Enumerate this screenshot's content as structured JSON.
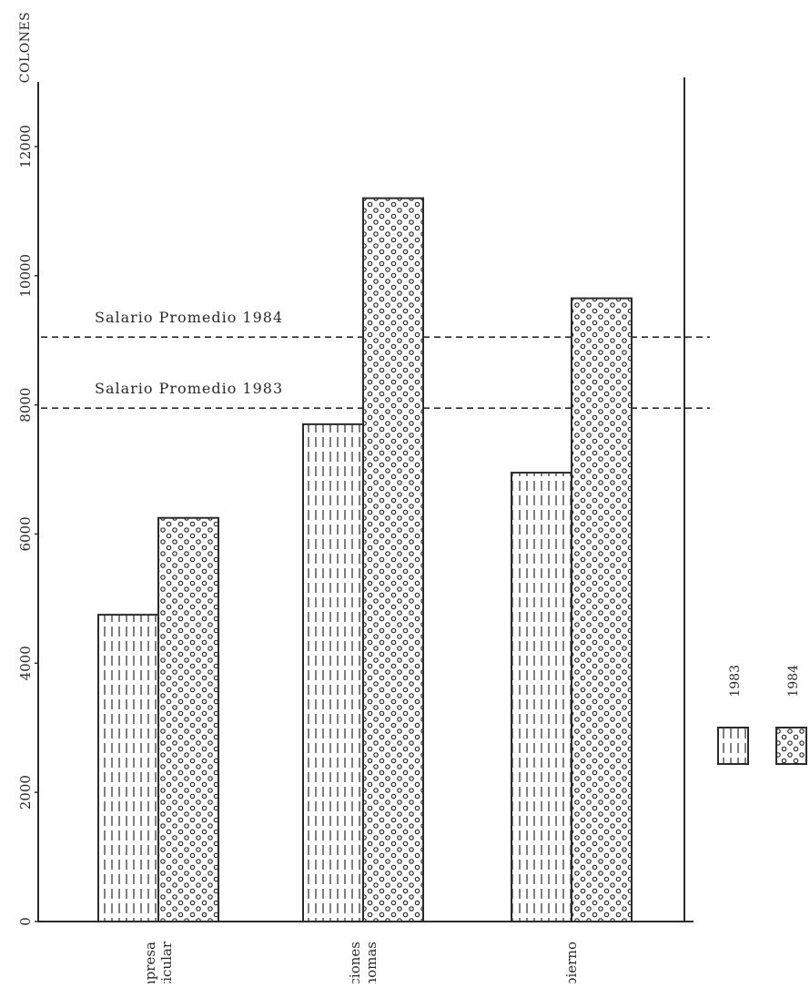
{
  "chart_data": {
    "type": "bar",
    "orientation": "vertical",
    "ylabel": "COLONES",
    "ylim": [
      0,
      13000
    ],
    "yticks": [
      0,
      2000,
      4000,
      6000,
      8000,
      10000,
      12000
    ],
    "categories": [
      [
        "Empresa",
        "Particular"
      ],
      [
        "Instituciones",
        "Autónomas"
      ],
      [
        "Gobierno"
      ]
    ],
    "series": [
      {
        "name": "1983",
        "pattern": "vertical-dashed-lines",
        "values": [
          4750,
          7700,
          6950
        ]
      },
      {
        "name": "1984",
        "pattern": "circles",
        "values": [
          6250,
          11200,
          9650
        ]
      }
    ],
    "reference_lines": [
      {
        "label": "Salario Promedio 1984",
        "value": 9050
      },
      {
        "label": "Salario Promedio 1983",
        "value": 7950
      }
    ],
    "legend": {
      "placement": "bottom-right",
      "entries": [
        "1983",
        "1984"
      ]
    },
    "grid": false,
    "colors": {
      "ink": "#2a2a2a",
      "background": "#ffffff"
    }
  }
}
